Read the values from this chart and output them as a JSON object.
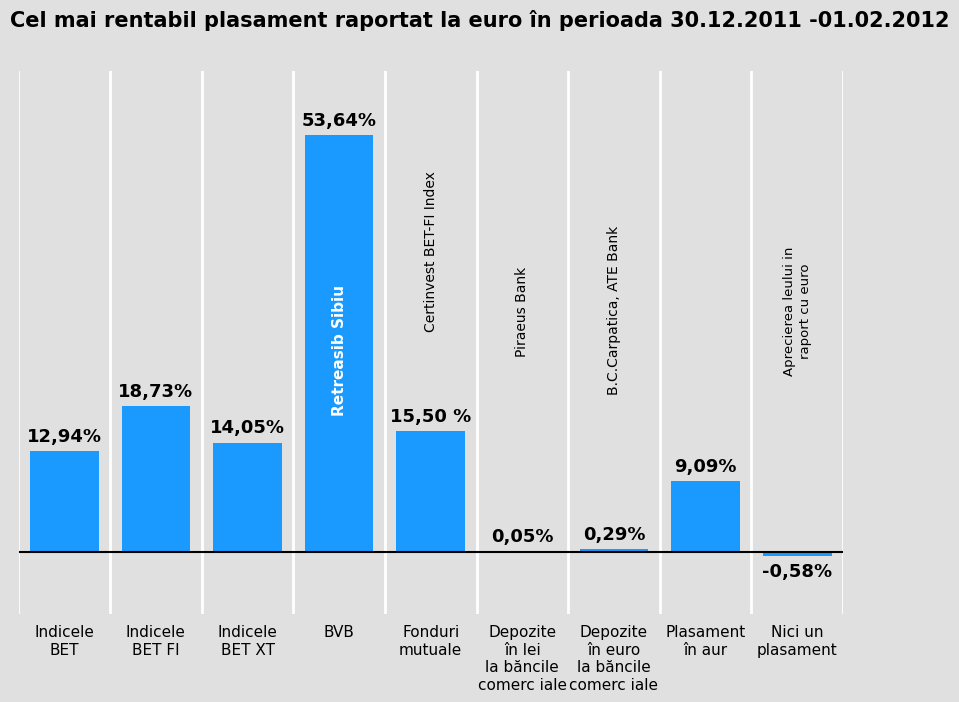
{
  "title": "Cel mai rentabil plasament raportat la euro în perioada 30.12.2011 -01.02.2012",
  "xlabel_labels": [
    "Indicele\nBET",
    "Indicele\nBET FI",
    "Indicele\nBET XT",
    "BVB",
    "Fonduri\nmutuale",
    "Depozite\nîn lei\nla băncile\ncomerc iale",
    "Depozite\nîn euro\nla băncile\ncomerc iale",
    "Plasament\nîn aur",
    "Nici un\nplasament"
  ],
  "values": [
    12.94,
    18.73,
    14.05,
    53.64,
    15.5,
    0.05,
    0.29,
    9.09,
    -0.58
  ],
  "bar_labels": [
    "12,94%",
    "18,73%",
    "14,05%",
    "53,64%",
    "15,50 %",
    "0,05%",
    "0,29%",
    "9,09%",
    "-0,58%"
  ],
  "bar_color": "#1a9aff",
  "bg_color": "#e0e0e0",
  "title_fontsize": 15,
  "value_fontsize": 13,
  "xlabel_fontsize": 11,
  "ylim": [
    -8,
    62
  ]
}
